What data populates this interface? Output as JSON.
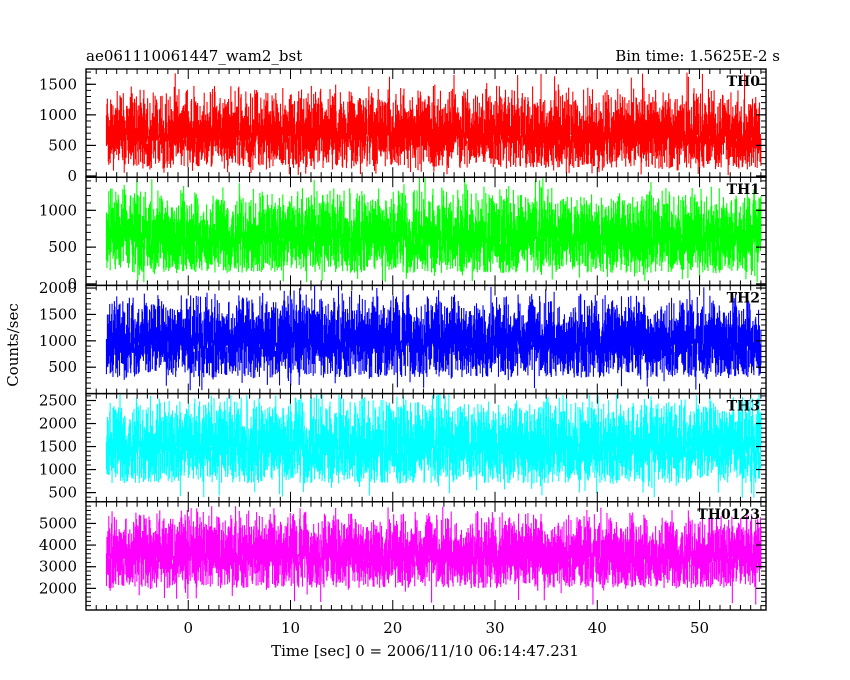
{
  "chart_data": {
    "type": "line",
    "title_left": "ae061110061447_wam2_bst",
    "title_right": "Bin time: 1.5625E-2 s",
    "xlabel": "Time [sec] 0 = 2006/11/10 06:14:47.231",
    "ylabel": "Counts/sec",
    "xlim": [
      -10,
      56.5
    ],
    "x_ticks": [
      0,
      10,
      20,
      30,
      40,
      50
    ],
    "x_data_range": [
      -8.0,
      56.0
    ],
    "panels": [
      {
        "name": "TH0",
        "color": "#ff0000",
        "ylim": [
          -20,
          1750
        ],
        "y_ticks": [
          0,
          500,
          1000,
          1500
        ],
        "y_tick_labels": [
          "0",
          "500",
          "1000",
          "1500"
        ],
        "signal_typical_range": [
          120,
          1150
        ],
        "signal_peak_max": 1700
      },
      {
        "name": "TH1",
        "color": "#00ff00",
        "ylim": [
          -20,
          1450
        ],
        "y_ticks": [
          0,
          500,
          1000
        ],
        "y_tick_labels": [
          "0",
          "500",
          "1000"
        ],
        "signal_typical_range": [
          150,
          1050
        ],
        "signal_peak_max": 1450
      },
      {
        "name": "TH2",
        "color": "#0000ff",
        "ylim": [
          0,
          2050
        ],
        "y_ticks": [
          500,
          1000,
          1500,
          2000
        ],
        "y_tick_labels": [
          "500",
          "1000",
          "1500",
          "2000"
        ],
        "signal_typical_range": [
          300,
          1550
        ],
        "signal_peak_max": 2050
      },
      {
        "name": "TH3",
        "color": "#00ffff",
        "ylim": [
          300,
          2650
        ],
        "y_ticks": [
          500,
          1000,
          1500,
          2000,
          2500
        ],
        "y_tick_labels": [
          "500",
          "1000",
          "1500",
          "2000",
          "2500"
        ],
        "signal_typical_range": [
          700,
          2200
        ],
        "signal_peak_max": 2650
      },
      {
        "name": "TH0123",
        "color": "#ff00ff",
        "ylim": [
          1000,
          6000
        ],
        "y_ticks": [
          2000,
          3000,
          4000,
          5000
        ],
        "y_tick_labels": [
          "2000",
          "3000",
          "4000",
          "5000"
        ],
        "signal_typical_range": [
          2000,
          4800
        ],
        "signal_peak_max": 5800
      }
    ],
    "grid": false,
    "legend": "none"
  }
}
